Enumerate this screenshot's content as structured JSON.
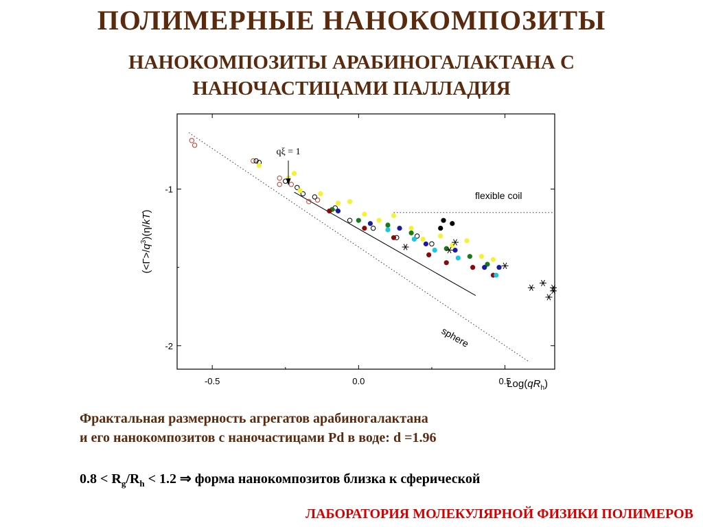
{
  "header": {
    "title": "ПОЛИМЕРНЫЕ  НАНОКОМПОЗИТЫ",
    "subtitle_line1": "НАНОКОМПОЗИТЫ АРАБИНОГАЛАКТАНА С",
    "subtitle_line2": "НАНОЧАСТИЦАМИ ПАЛЛАДИЯ"
  },
  "caption": {
    "line1": "Фрактальная размерность агрегатов  арабиногалактана",
    "line2": " и его нанокомпозитов с наночастицами Pd в воде: d =1.96"
  },
  "formula": {
    "part1": "0.8 < R",
    "sub1": "g",
    "part2": "/R",
    "sub2": "h",
    "part3": " < 1.2 ⇒ форма нанокомпозитов близка к сферической"
  },
  "footer": {
    "lab": "ЛАБОРАТОРИЯ МОЛЕКУЛЯРНОЙ ФИЗИКИ ПОЛИМЕРОВ"
  },
  "chart_data": {
    "type": "scatter",
    "xlabel": "Log(qR_h)",
    "ylabel": "(<Γ>/q³)(η/kT)",
    "xlim": [
      -0.62,
      0.67
    ],
    "ylim": [
      -2.15,
      -0.52
    ],
    "x_ticks": [
      {
        "value": -0.5,
        "label": "-0.5"
      },
      {
        "value": 0.0,
        "label": "0.0"
      },
      {
        "value": 0.5,
        "label": "0.5"
      }
    ],
    "y_ticks": [
      {
        "value": -1,
        "label": "-1"
      },
      {
        "value": -2,
        "label": "-2"
      }
    ],
    "annotations": {
      "qxi_label": "qξ = 1",
      "qxi_x": -0.24,
      "flexible_coil_label": "flexible coil",
      "flexible_coil_y": -1.15,
      "sphere_label": "sphere"
    },
    "reference_lines": [
      {
        "name": "sphere",
        "style": "dotted",
        "x": [
          -0.58,
          0.58
        ],
        "y": [
          -0.64,
          -2.1
        ]
      },
      {
        "name": "flexible coil",
        "style": "dotted",
        "x": [
          0.12,
          0.67
        ],
        "y": [
          -1.15,
          -1.15
        ]
      },
      {
        "name": "fit",
        "style": "solid",
        "x": [
          -0.22,
          0.4
        ],
        "y": [
          -1.02,
          -1.68
        ]
      }
    ],
    "series": [
      {
        "marker": "open-circle",
        "color": "#c0392b",
        "points": [
          [
            -0.57,
            -0.69
          ],
          [
            -0.56,
            -0.72
          ],
          [
            -0.36,
            -0.82
          ],
          [
            -0.27,
            -0.93
          ],
          [
            -0.27,
            -0.97
          ],
          [
            -0.23,
            -0.97
          ],
          [
            -0.17,
            -1.08
          ],
          [
            -0.14,
            -1.07
          ]
        ]
      },
      {
        "marker": "open-circle",
        "color": "#000000",
        "points": [
          [
            -0.35,
            -0.82
          ],
          [
            -0.34,
            -0.83
          ],
          [
            -0.25,
            -0.95
          ],
          [
            -0.21,
            -0.99
          ],
          [
            -0.19,
            -1.03
          ],
          [
            -0.15,
            -1.05
          ],
          [
            -0.08,
            -1.12
          ],
          [
            -0.03,
            -1.2
          ],
          [
            0.05,
            -1.25
          ],
          [
            0.13,
            -1.31
          ],
          [
            0.2,
            -1.3
          ],
          [
            0.25,
            -1.35
          ]
        ]
      },
      {
        "marker": "filled-circle",
        "color": "#f5f235",
        "points": [
          [
            -0.34,
            -0.85
          ],
          [
            -0.24,
            -0.93
          ],
          [
            -0.22,
            -0.9
          ],
          [
            -0.2,
            -1.01
          ],
          [
            -0.13,
            -1.03
          ],
          [
            -0.07,
            -1.09
          ],
          [
            -0.03,
            -1.08
          ],
          [
            0.02,
            -1.16
          ],
          [
            0.07,
            -1.2
          ],
          [
            0.12,
            -1.17
          ],
          [
            0.18,
            -1.25
          ],
          [
            0.22,
            -1.32
          ],
          [
            0.28,
            -1.3
          ],
          [
            0.32,
            -1.36
          ],
          [
            0.37,
            -1.33
          ],
          [
            0.42,
            -1.43
          ],
          [
            0.46,
            -1.45
          ]
        ]
      },
      {
        "marker": "filled-circle",
        "color": "#1a7a1a",
        "points": [
          [
            -0.09,
            -1.13
          ],
          [
            0.0,
            -1.2
          ],
          [
            0.1,
            -1.23
          ],
          [
            0.18,
            -1.28
          ],
          [
            0.3,
            -1.38
          ],
          [
            0.38,
            -1.43
          ],
          [
            0.44,
            -1.48
          ]
        ]
      },
      {
        "marker": "filled-circle",
        "color": "#1a1aa0",
        "points": [
          [
            -0.07,
            -1.14
          ],
          [
            0.04,
            -1.22
          ],
          [
            0.14,
            -1.25
          ],
          [
            0.23,
            -1.35
          ],
          [
            0.33,
            -1.39
          ],
          [
            0.43,
            -1.5
          ],
          [
            0.48,
            -1.5
          ]
        ]
      },
      {
        "marker": "filled-circle",
        "color": "#8a0a0a",
        "points": [
          [
            -0.1,
            -1.14
          ],
          [
            0.02,
            -1.25
          ],
          [
            0.12,
            -1.31
          ],
          [
            0.24,
            -1.42
          ],
          [
            0.3,
            -1.47
          ],
          [
            0.39,
            -1.5
          ],
          [
            0.46,
            -1.55
          ]
        ]
      },
      {
        "marker": "filled-circle",
        "color": "#000000",
        "points": [
          [
            0.29,
            -1.2
          ],
          [
            0.32,
            -1.22
          ],
          [
            0.28,
            -1.25
          ]
        ]
      },
      {
        "marker": "filled-circle",
        "color": "#19c7e0",
        "points": [
          [
            0.1,
            -1.26
          ],
          [
            0.19,
            -1.32
          ],
          [
            0.26,
            -1.39
          ],
          [
            0.34,
            -1.44
          ],
          [
            0.47,
            -1.55
          ]
        ]
      },
      {
        "marker": "asterisk",
        "color": "#000000",
        "points": [
          [
            0.16,
            -1.37
          ],
          [
            0.33,
            -1.34
          ],
          [
            0.31,
            -1.39
          ],
          [
            0.5,
            -1.49
          ],
          [
            0.59,
            -1.63
          ],
          [
            0.63,
            -1.6
          ],
          [
            0.65,
            -1.69
          ],
          [
            0.68,
            -1.63
          ],
          [
            0.7,
            -1.65
          ]
        ]
      }
    ]
  }
}
